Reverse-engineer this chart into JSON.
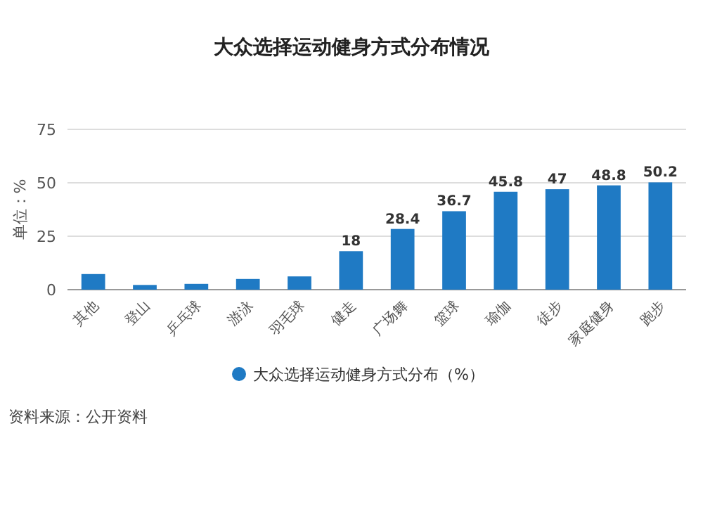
{
  "chart_data": {
    "type": "bar",
    "title": "大众选择运动健身方式分布情况",
    "ylabel": "单位：%",
    "categories": [
      "其他",
      "登山",
      "乒乓球",
      "游泳",
      "羽毛球",
      "健走",
      "广场舞",
      "篮球",
      "瑜伽",
      "徒步",
      "家庭健身",
      "跑步"
    ],
    "series": [
      {
        "name": "大众选择运动健身方式分布（%）",
        "color": "#1f7ac4",
        "values": [
          7.3,
          2.2,
          2.7,
          5,
          6.2,
          18,
          28.4,
          36.7,
          45.8,
          47,
          48.8,
          50.2
        ],
        "value_labels": [
          null,
          null,
          null,
          null,
          null,
          "18",
          "28.4",
          "36.7",
          "45.8",
          "47",
          "48.8",
          "50.2"
        ]
      }
    ],
    "ylim": [
      0,
      75
    ],
    "yticks": [
      0,
      25,
      50,
      75
    ],
    "grid": "y",
    "legend": "bottom",
    "annotations": [
      "资料来源：公开资料"
    ]
  }
}
